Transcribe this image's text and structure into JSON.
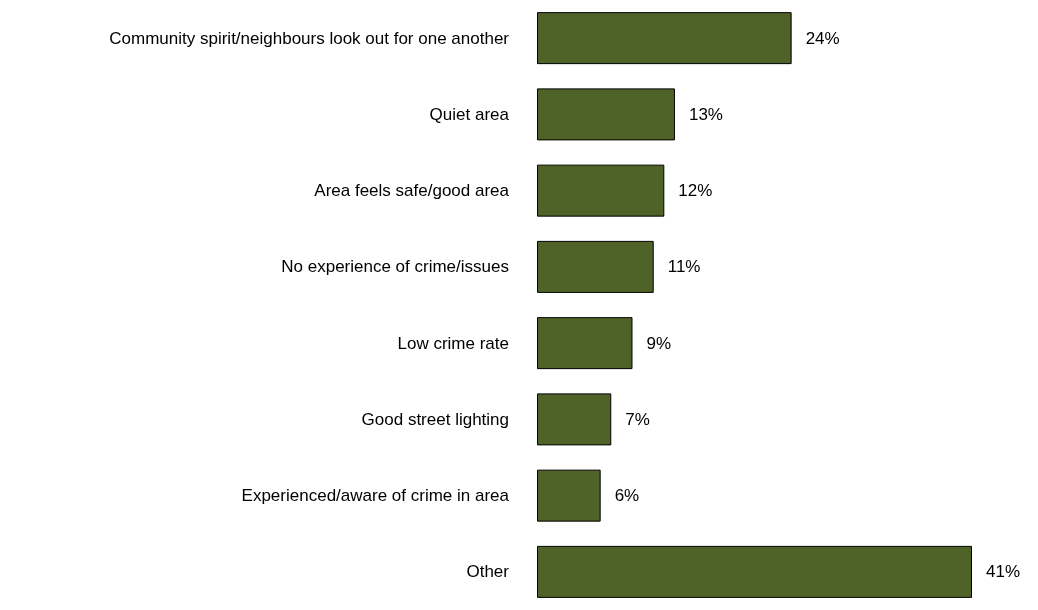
{
  "chart_data": {
    "type": "bar",
    "orientation": "horizontal",
    "categories": [
      "Community spirit/neighbours look out for one another",
      "Quiet area",
      "Area feels safe/good area",
      "No experience of crime/issues",
      "Low crime rate",
      "Good street lighting",
      "Experienced/aware of crime in area",
      "Other"
    ],
    "values": [
      24,
      13,
      12,
      11,
      9,
      7,
      6,
      41
    ],
    "value_labels": [
      "24%",
      "13%",
      "12%",
      "11%",
      "9%",
      "7%",
      "6%",
      "41%"
    ],
    "color": "#4f6228"
  }
}
